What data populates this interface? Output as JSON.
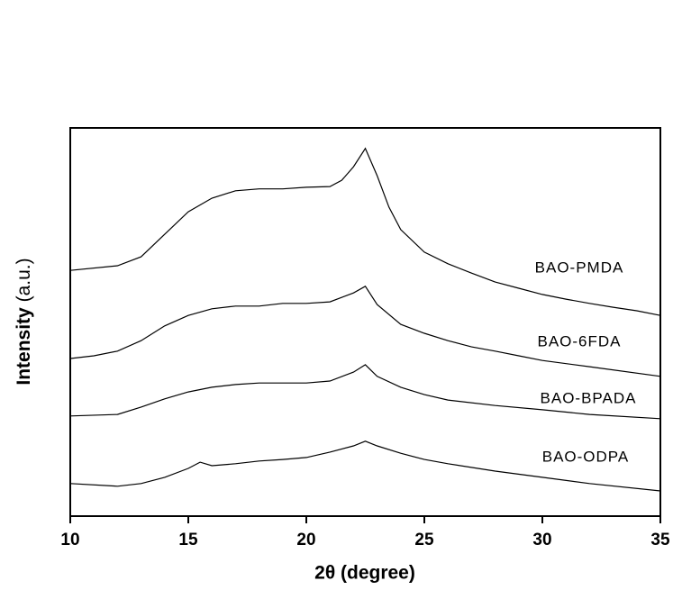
{
  "chart_data": {
    "type": "line",
    "xlabel": "2θ (degree)",
    "ylabel": [
      "Intensity",
      "(a.u.)"
    ],
    "xlim": [
      10,
      35
    ],
    "xticks": [
      10,
      15,
      20,
      25,
      30,
      35
    ],
    "ylim": [
      0,
      100
    ],
    "series": [
      {
        "name": "BAO-PMDA",
        "color": "#000000",
        "x": [
          10,
          12,
          13,
          14,
          15,
          16,
          17,
          18,
          19,
          20,
          21,
          21.5,
          22,
          22.5,
          23,
          23.5,
          24,
          25,
          26,
          27,
          28,
          29,
          30,
          31,
          32,
          33,
          34,
          35
        ],
        "values": [
          63.3,
          64.5,
          66.8,
          72.6,
          78.4,
          81.9,
          83.8,
          84.3,
          84.3,
          84.7,
          84.9,
          86.5,
          90,
          94.7,
          87.7,
          79.6,
          73.8,
          68,
          65,
          62.6,
          60.3,
          58.7,
          57.1,
          55.9,
          54.8,
          53.8,
          52.9,
          51.7
        ]
      },
      {
        "name": "BAO-6FDA",
        "color": "#000000",
        "x": [
          10,
          11,
          12,
          13,
          14,
          15,
          16,
          17,
          18,
          19,
          20,
          21,
          22,
          22.5,
          23,
          24,
          25,
          26,
          27,
          28,
          29,
          30,
          32,
          35
        ],
        "values": [
          40.6,
          41.3,
          42.5,
          45.2,
          49,
          51.7,
          53.4,
          54.1,
          54.1,
          54.8,
          54.8,
          55.2,
          57.5,
          59.2,
          54.5,
          49.4,
          47.1,
          45.2,
          43.6,
          42.5,
          41.3,
          40.1,
          38.5,
          36
        ]
      },
      {
        "name": "BAO-BPADA",
        "color": "#000000",
        "x": [
          10,
          12,
          13,
          14,
          15,
          16,
          17,
          18,
          19,
          20,
          21,
          22,
          22.5,
          23,
          24,
          25,
          26,
          28,
          30,
          32,
          35
        ],
        "values": [
          25.8,
          26.2,
          28.1,
          30.2,
          32,
          33.2,
          33.9,
          34.3,
          34.3,
          34.3,
          34.8,
          37.1,
          39,
          36,
          33.2,
          31.3,
          29.9,
          28.5,
          27.4,
          26.2,
          25.1
        ]
      },
      {
        "name": "BAO-ODPA",
        "color": "#000000",
        "x": [
          10,
          12,
          13,
          14,
          15,
          15.5,
          16,
          17,
          18,
          19,
          20,
          21,
          22,
          22.5,
          23,
          24,
          25,
          26,
          28,
          30,
          32,
          35
        ],
        "values": [
          8.4,
          7.7,
          8.4,
          10,
          12.3,
          13.9,
          13,
          13.5,
          14.2,
          14.6,
          15.1,
          16.5,
          18.1,
          19.3,
          18.1,
          16.2,
          14.6,
          13.5,
          11.6,
          10,
          8.4,
          6.5
        ]
      }
    ]
  }
}
